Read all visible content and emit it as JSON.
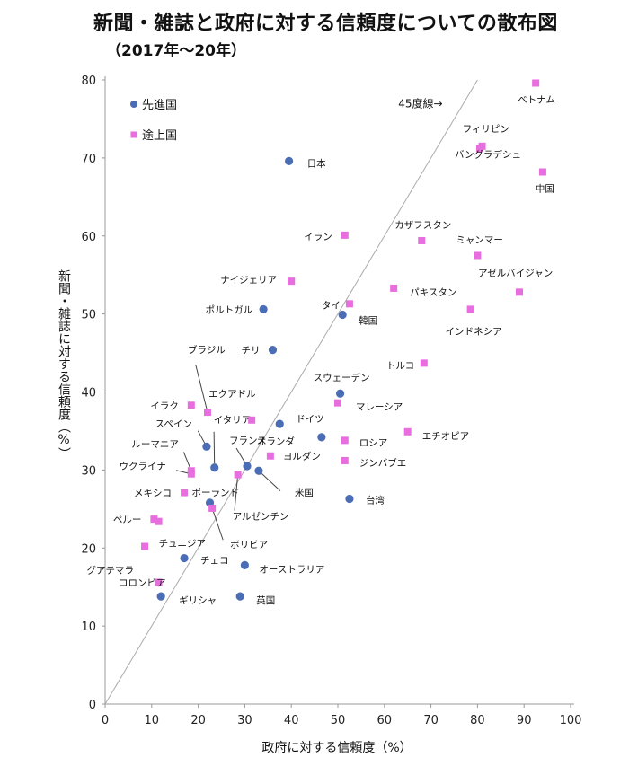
{
  "chart_data": {
    "type": "scatter",
    "title": "新聞・雑誌と政府に対する信頼度についての散布図",
    "subtitle": "（2017年〜20年）",
    "xlabel": "政府に対する信頼度（%）",
    "ylabel": "新聞・雑誌に対する信頼度（%）",
    "xlim": [
      0,
      100
    ],
    "ylim": [
      0,
      80
    ],
    "xticks": [
      0,
      10,
      20,
      30,
      40,
      50,
      60,
      70,
      80,
      90,
      100
    ],
    "yticks": [
      0,
      10,
      20,
      30,
      40,
      50,
      60,
      70,
      80
    ],
    "grid": false,
    "legend_position": "top-left",
    "reference_line": {
      "label": "45度線",
      "arrow": "→",
      "from": [
        0,
        0
      ],
      "to": [
        100,
        100
      ]
    },
    "series": [
      {
        "name": "先進国",
        "marker": "circle",
        "color": "#4a6db5",
        "points": [
          {
            "label": "日本",
            "x": 39.5,
            "y": 69.6
          },
          {
            "label": "ポルトガル",
            "x": 34.0,
            "y": 50.6
          },
          {
            "label": "韓国",
            "x": 51.0,
            "y": 49.9
          },
          {
            "label": "チリ",
            "x": 36.0,
            "y": 45.4
          },
          {
            "label": "スウェーデン",
            "x": 50.5,
            "y": 39.8
          },
          {
            "label": "ドイツ",
            "x": 37.5,
            "y": 35.9
          },
          {
            "label": "オランダ",
            "x": 46.5,
            "y": 34.2
          },
          {
            "label": "スペイン",
            "x": 21.8,
            "y": 33.0
          },
          {
            "label": "イタリア",
            "x": 23.5,
            "y": 30.3
          },
          {
            "label": "フランス",
            "x": 30.5,
            "y": 30.5
          },
          {
            "label": "米国",
            "x": 33.0,
            "y": 29.9
          },
          {
            "label": "台湾",
            "x": 52.5,
            "y": 26.3
          },
          {
            "label": "ポーランド",
            "x": 22.5,
            "y": 25.8
          },
          {
            "label": "チェコ",
            "x": 17.0,
            "y": 18.7
          },
          {
            "label": "オーストラリア",
            "x": 30.0,
            "y": 17.8
          },
          {
            "label": "ギリシャ",
            "x": 12.0,
            "y": 13.8
          },
          {
            "label": "英国",
            "x": 29.0,
            "y": 13.8
          }
        ]
      },
      {
        "name": "途上国",
        "marker": "square",
        "color": "#e86ee0",
        "points": [
          {
            "label": "ベトナム",
            "x": 92.5,
            "y": 79.6
          },
          {
            "label": "フィリピン",
            "x": 81.0,
            "y": 71.5
          },
          {
            "label": "バングラデシュ",
            "x": 80.5,
            "y": 71.2
          },
          {
            "label": "中国",
            "x": 94.0,
            "y": 68.2
          },
          {
            "label": "イラン",
            "x": 51.5,
            "y": 60.1
          },
          {
            "label": "カザフスタン",
            "x": 68.0,
            "y": 59.4
          },
          {
            "label": "ミャンマー",
            "x": 80.0,
            "y": 57.5
          },
          {
            "label": "ナイジェリア",
            "x": 40.0,
            "y": 54.2
          },
          {
            "label": "パキスタン",
            "x": 62.0,
            "y": 53.3
          },
          {
            "label": "アゼルバイジャン",
            "x": 89.0,
            "y": 52.8
          },
          {
            "label": "タイ",
            "x": 52.5,
            "y": 51.3
          },
          {
            "label": "インドネシア",
            "x": 78.5,
            "y": 50.6
          },
          {
            "label": "トルコ",
            "x": 68.5,
            "y": 43.7
          },
          {
            "label": "イラク",
            "x": 18.5,
            "y": 38.3
          },
          {
            "label": "ブラジル",
            "x": 22.0,
            "y": 37.4
          },
          {
            "label": "マレーシア",
            "x": 50.0,
            "y": 38.6
          },
          {
            "label": "エクアドル",
            "x": 31.5,
            "y": 36.4
          },
          {
            "label": "エチオピア",
            "x": 65.0,
            "y": 34.9
          },
          {
            "label": "ロシア",
            "x": 51.5,
            "y": 33.8
          },
          {
            "label": "ヨルダン",
            "x": 35.5,
            "y": 31.8
          },
          {
            "label": "ジンバブエ",
            "x": 51.5,
            "y": 31.2
          },
          {
            "label": "ルーマニア",
            "x": 18.5,
            "y": 29.9
          },
          {
            "label": "ウクライナ",
            "x": 18.5,
            "y": 29.5
          },
          {
            "label": "アルゼンチン",
            "x": 28.5,
            "y": 29.4
          },
          {
            "label": "メキシコ",
            "x": 17.0,
            "y": 27.1
          },
          {
            "label": "ボリビア",
            "x": 23.0,
            "y": 25.1
          },
          {
            "label": "ペルー",
            "x": 10.5,
            "y": 23.7
          },
          {
            "label": "チュニジア",
            "x": 11.5,
            "y": 23.4
          },
          {
            "label": "グアテマラ",
            "x": 8.5,
            "y": 20.2
          },
          {
            "label": "コロンビア",
            "x": 11.5,
            "y": 15.6
          }
        ]
      }
    ]
  }
}
